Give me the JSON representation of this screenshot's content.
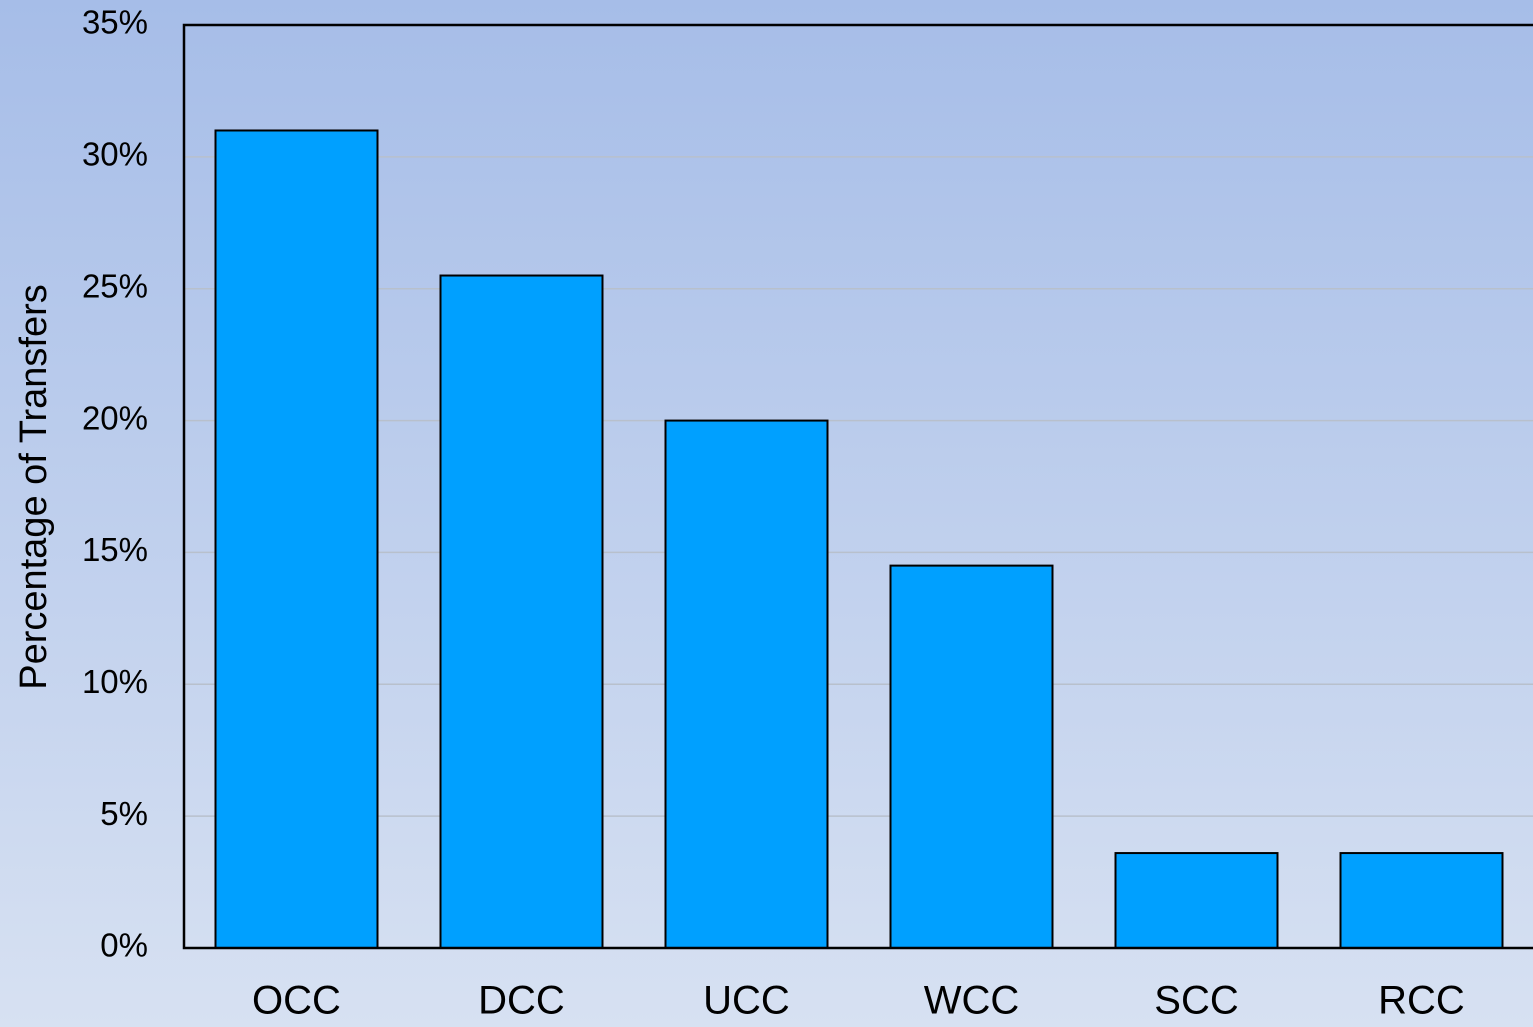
{
  "chart_data": {
    "type": "bar",
    "y_label": "Percentage of Transfers",
    "categories": [
      "OCC",
      "DCC",
      "UCC",
      "WCC",
      "SCC",
      "RCC"
    ],
    "values": [
      31,
      25.5,
      20,
      14.5,
      3.6,
      3.6
    ],
    "color": "#00a0ff",
    "ylim": [
      0,
      35
    ],
    "yticks": [
      {
        "value": 0,
        "label": "0%"
      },
      {
        "value": 5,
        "label": "5%"
      },
      {
        "value": 10,
        "label": "10%"
      },
      {
        "value": 15,
        "label": "15%"
      },
      {
        "value": 20,
        "label": "20%"
      },
      {
        "value": 25,
        "label": "25%"
      },
      {
        "value": 30,
        "label": "30%"
      },
      {
        "value": 35,
        "label": "35%"
      }
    ],
    "grid": true
  }
}
